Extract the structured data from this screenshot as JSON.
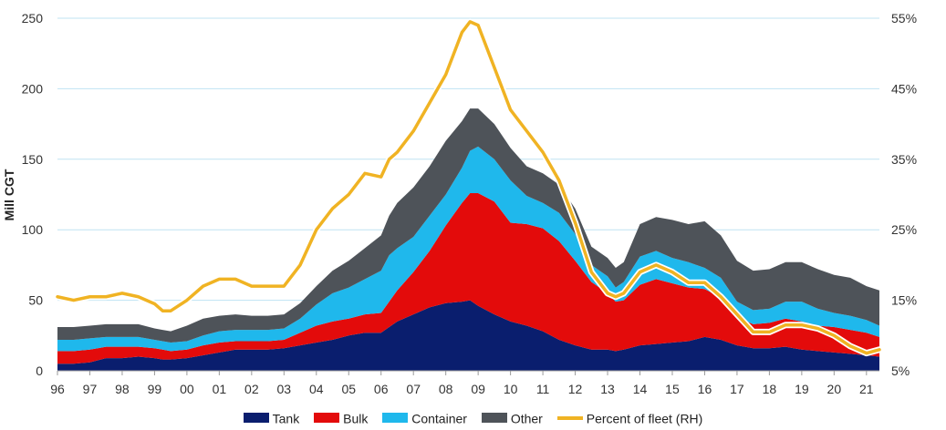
{
  "chart_data": {
    "type": "area",
    "ylabel": "Mill CGT",
    "x_ticks": [
      "96",
      "97",
      "98",
      "99",
      "00",
      "01",
      "02",
      "03",
      "04",
      "05",
      "06",
      "07",
      "08",
      "09",
      "10",
      "11",
      "12",
      "13",
      "14",
      "15",
      "16",
      "17",
      "18",
      "19",
      "20",
      "21"
    ],
    "ylim": [
      0,
      250
    ],
    "y_ticks": [
      0,
      50,
      100,
      150,
      200,
      250
    ],
    "y2lim": [
      5,
      55
    ],
    "y2_ticks": [
      "5%",
      "15%",
      "25%",
      "35%",
      "45%",
      "55%"
    ],
    "grid": true,
    "legend_position": "bottom",
    "x": [
      1996.0,
      1996.5,
      1997.0,
      1997.5,
      1998.0,
      1998.5,
      1999.0,
      1999.25,
      1999.5,
      2000.0,
      2000.5,
      2001.0,
      2001.5,
      2002.0,
      2002.5,
      2003.0,
      2003.5,
      2004.0,
      2004.5,
      2005.0,
      2005.5,
      2006.0,
      2006.25,
      2006.5,
      2007.0,
      2007.5,
      2008.0,
      2008.5,
      2008.75,
      2009.0,
      2009.5,
      2010.0,
      2010.5,
      2011.0,
      2011.5,
      2012.0,
      2012.5,
      2013.0,
      2013.25,
      2013.5,
      2014.0,
      2014.5,
      2015.0,
      2015.5,
      2016.0,
      2016.5,
      2017.0,
      2017.5,
      2018.0,
      2018.5,
      2019.0,
      2019.5,
      2020.0,
      2020.5,
      2021.0,
      2021.4
    ],
    "series": [
      {
        "name": "Tank",
        "color": "#0a1e6e",
        "values": [
          5,
          5,
          6,
          9,
          9,
          10,
          9,
          8,
          8,
          9,
          11,
          13,
          15,
          15,
          15,
          16,
          18,
          20,
          22,
          25,
          27,
          27,
          31,
          35,
          40,
          45,
          48,
          49,
          50,
          46,
          40,
          35,
          32,
          28,
          22,
          18,
          15,
          15,
          14,
          15,
          18,
          19,
          20,
          21,
          24,
          22,
          18,
          16,
          16,
          17,
          15,
          14,
          13,
          12,
          11,
          10
        ]
      },
      {
        "name": "Bulk",
        "color": "#e30b0b",
        "values": [
          9,
          9,
          9,
          8,
          8,
          7,
          7,
          7,
          6,
          6,
          7,
          7,
          6,
          6,
          6,
          6,
          9,
          12,
          13,
          12,
          13,
          14,
          18,
          22,
          30,
          40,
          55,
          70,
          76,
          80,
          80,
          70,
          72,
          73,
          70,
          60,
          48,
          40,
          35,
          35,
          43,
          46,
          42,
          38,
          34,
          30,
          20,
          17,
          18,
          20,
          20,
          18,
          18,
          17,
          16,
          14
        ]
      },
      {
        "name": "Container",
        "color": "#1fb8ec",
        "values": [
          8,
          8,
          8,
          7,
          7,
          7,
          6,
          6,
          6,
          6,
          7,
          8,
          8,
          8,
          8,
          8,
          10,
          15,
          20,
          22,
          25,
          30,
          33,
          30,
          25,
          25,
          22,
          25,
          30,
          33,
          30,
          30,
          20,
          18,
          20,
          19,
          12,
          12,
          10,
          13,
          20,
          20,
          18,
          18,
          15,
          14,
          11,
          10,
          10,
          12,
          14,
          12,
          10,
          10,
          9,
          8
        ]
      },
      {
        "name": "Other",
        "color": "#4e5359",
        "values": [
          9,
          9,
          9,
          9,
          9,
          9,
          8,
          8,
          8,
          11,
          12,
          11,
          11,
          10,
          10,
          10,
          11,
          13,
          16,
          19,
          22,
          25,
          28,
          32,
          35,
          35,
          38,
          33,
          30,
          27,
          25,
          23,
          21,
          21,
          20,
          18,
          13,
          13,
          14,
          14,
          23,
          24,
          27,
          27,
          33,
          30,
          29,
          28,
          28,
          28,
          28,
          28,
          27,
          27,
          24,
          25
        ]
      },
      {
        "name": "Percent of fleet (RH)",
        "color": "#f0b323",
        "axis": "right",
        "values": [
          15.5,
          15,
          15.5,
          15.5,
          16,
          15.5,
          14.5,
          13.5,
          13.5,
          15,
          17,
          18,
          18,
          17,
          17,
          17,
          20,
          25,
          28,
          30,
          33,
          32.5,
          35,
          36,
          39,
          43,
          47,
          53,
          54.5,
          54,
          48,
          42,
          39,
          36,
          32,
          26,
          19,
          16,
          15.5,
          16,
          19,
          20,
          19,
          17.5,
          17.5,
          15.5,
          13,
          10.5,
          10.5,
          11.5,
          11.5,
          11,
          10,
          8.5,
          7.5,
          8
        ]
      }
    ]
  },
  "legend": {
    "tank_label": "Tank",
    "bulk_label": "Bulk",
    "container_label": "Container",
    "other_label": "Other",
    "percent_label": "Percent of fleet (RH)"
  }
}
